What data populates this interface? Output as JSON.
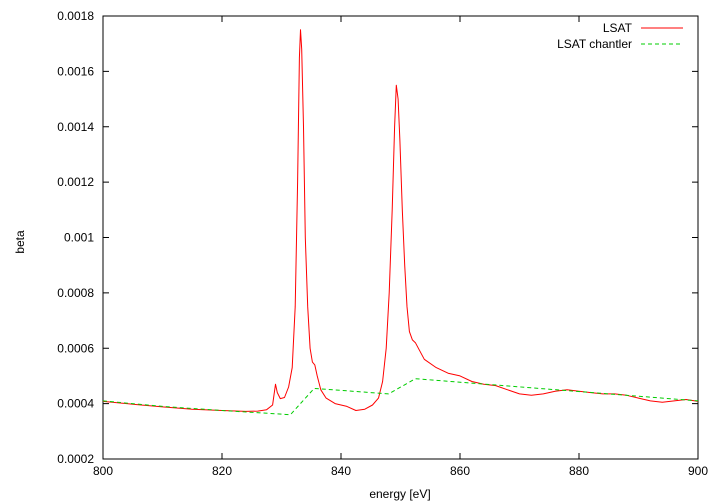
{
  "chart_data": {
    "type": "line",
    "title": "",
    "xlabel": "energy [eV]",
    "ylabel": "beta",
    "xlim": [
      800,
      900
    ],
    "ylim": [
      0.0002,
      0.0018
    ],
    "x_ticks": [
      800,
      820,
      840,
      860,
      880,
      900
    ],
    "y_ticks": [
      0.0002,
      0.0004,
      0.0006,
      0.0008,
      0.001,
      0.0012,
      0.0014,
      0.0016,
      0.0018
    ],
    "x_tick_labels": [
      "800",
      "820",
      "840",
      "860",
      "880",
      "900"
    ],
    "y_tick_labels": [
      "0.0002",
      "0.0004",
      "0.0006",
      "0.0008",
      "0.001",
      "0.0012",
      "0.0014",
      "0.0016",
      "0.0018"
    ],
    "grid": false,
    "legend_position": "top-right",
    "series": [
      {
        "name": "LSAT",
        "color": "#ff0000",
        "dash": "solid",
        "points": [
          [
            800,
            0.000408
          ],
          [
            805,
            0.000398
          ],
          [
            810,
            0.000388
          ],
          [
            815,
            0.00038
          ],
          [
            820,
            0.000375
          ],
          [
            824,
            0.000372
          ],
          [
            826,
            0.000373
          ],
          [
            827.5,
            0.000378
          ],
          [
            828.5,
            0.000395
          ],
          [
            829.0,
            0.00047
          ],
          [
            829.3,
            0.00044
          ],
          [
            829.8,
            0.000418
          ],
          [
            830.5,
            0.000422
          ],
          [
            831.2,
            0.00046
          ],
          [
            831.8,
            0.00053
          ],
          [
            832.3,
            0.00075
          ],
          [
            832.7,
            0.0012
          ],
          [
            833.0,
            0.00165
          ],
          [
            833.2,
            0.00175
          ],
          [
            833.4,
            0.00168
          ],
          [
            833.7,
            0.0014
          ],
          [
            834.0,
            0.001
          ],
          [
            834.4,
            0.00075
          ],
          [
            834.8,
            0.0006
          ],
          [
            835.2,
            0.00055
          ],
          [
            835.6,
            0.00054
          ],
          [
            836.0,
            0.0005
          ],
          [
            836.6,
            0.00045
          ],
          [
            837.5,
            0.00042
          ],
          [
            839.0,
            0.0004
          ],
          [
            841.0,
            0.00039
          ],
          [
            842.5,
            0.000375
          ],
          [
            844.0,
            0.00038
          ],
          [
            845.3,
            0.000395
          ],
          [
            846.3,
            0.00042
          ],
          [
            847.0,
            0.00048
          ],
          [
            847.6,
            0.0006
          ],
          [
            848.1,
            0.0008
          ],
          [
            848.6,
            0.0011
          ],
          [
            849.0,
            0.0014
          ],
          [
            849.3,
            0.00155
          ],
          [
            849.6,
            0.0015
          ],
          [
            849.9,
            0.00135
          ],
          [
            850.3,
            0.0011
          ],
          [
            850.7,
            0.0009
          ],
          [
            851.1,
            0.00075
          ],
          [
            851.5,
            0.00066
          ],
          [
            852.0,
            0.00063
          ],
          [
            852.5,
            0.00062
          ],
          [
            853.0,
            0.0006
          ],
          [
            854.0,
            0.00056
          ],
          [
            856.0,
            0.00053
          ],
          [
            858.0,
            0.00051
          ],
          [
            860.0,
            0.0005
          ],
          [
            862.0,
            0.00048
          ],
          [
            864.0,
            0.00047
          ],
          [
            866.0,
            0.000465
          ],
          [
            868.0,
            0.00045
          ],
          [
            870.0,
            0.000435
          ],
          [
            872.0,
            0.00043
          ],
          [
            874.0,
            0.000435
          ],
          [
            876.0,
            0.000445
          ],
          [
            878.0,
            0.00045
          ],
          [
            880.0,
            0.000445
          ],
          [
            882.0,
            0.00044
          ],
          [
            884.0,
            0.000435
          ],
          [
            886.0,
            0.000435
          ],
          [
            888.0,
            0.00043
          ],
          [
            890.0,
            0.00042
          ],
          [
            892.0,
            0.00041
          ],
          [
            894.0,
            0.000405
          ],
          [
            896.0,
            0.00041
          ],
          [
            898.0,
            0.000415
          ],
          [
            900.0,
            0.000408
          ]
        ]
      },
      {
        "name": "LSAT chantler",
        "color": "#00cc00",
        "dash": "dashed",
        "points": [
          [
            800,
            0.00041
          ],
          [
            810,
            0.00039
          ],
          [
            820,
            0.000375
          ],
          [
            831.5,
            0.00036
          ],
          [
            835.5,
            0.000455
          ],
          [
            848,
            0.000435
          ],
          [
            852.5,
            0.00049
          ],
          [
            900,
            0.00041
          ]
        ]
      }
    ]
  }
}
